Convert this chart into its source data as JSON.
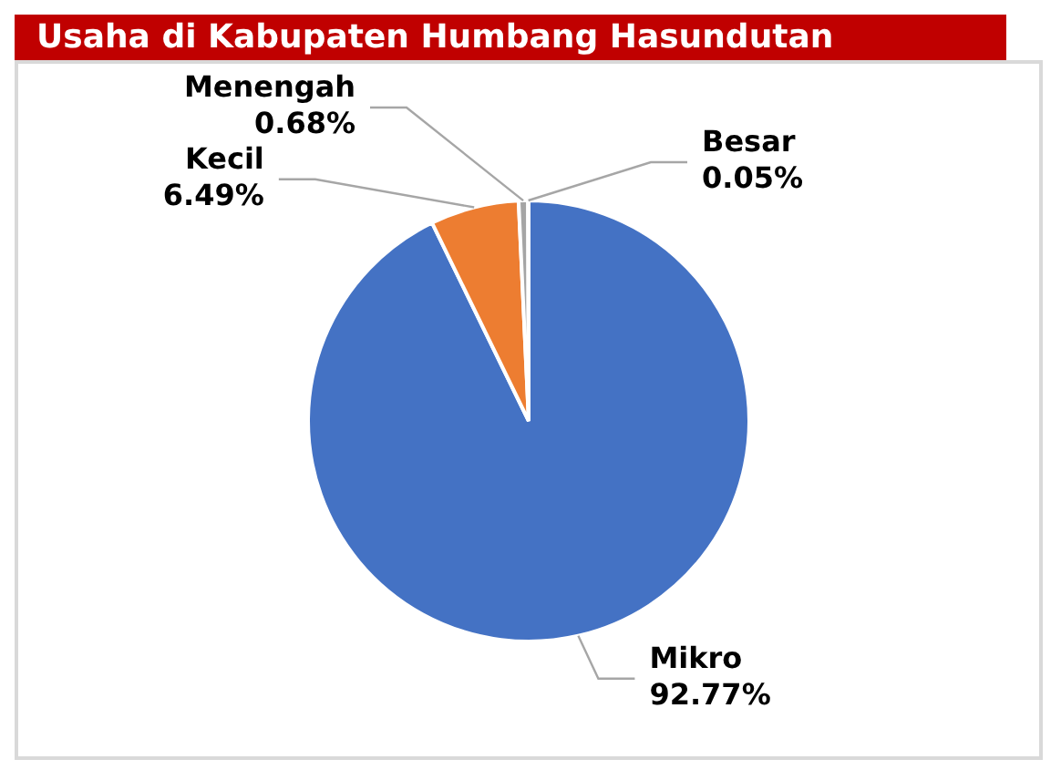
{
  "chart_data": {
    "type": "pie",
    "title": "Usaha di Kabupaten Humbang Hasundutan",
    "categories": [
      "Mikro",
      "Kecil",
      "Menengah",
      "Besar"
    ],
    "values": [
      92.77,
      6.49,
      0.68,
      0.05
    ],
    "value_labels": [
      "92.77%",
      "6.49%",
      "0.68%",
      "0.05%"
    ],
    "colors": [
      "#4472c4",
      "#ed7d31",
      "#a5a5a5",
      "#ffc000"
    ],
    "legend": false
  }
}
